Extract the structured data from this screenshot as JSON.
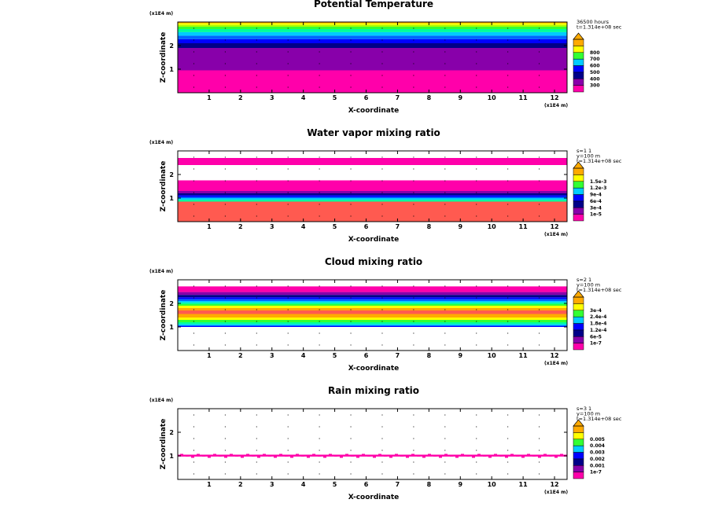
{
  "colors": {
    "magenta": "#ff00aa",
    "purple": "#8800aa",
    "navy": "#000088",
    "blue": "#0000ff",
    "royal": "#0066ff",
    "cyan": "#00ccff",
    "teal": "#00ff99",
    "green": "#33ff33",
    "yellowgreen": "#aaff00",
    "yellow": "#ffff00",
    "orange": "#ffaa00",
    "salmon": "#ff5a50"
  },
  "chart_data": [
    {
      "type": "heatmap",
      "title": "Potential Temperature",
      "xlabel": "X-coordinate",
      "ylabel": "Z-coordinate",
      "x_scale_label": "(x1E4 m)",
      "y_scale_label": "(x1E4 m)",
      "xticks": [
        1,
        2,
        3,
        4,
        5,
        6,
        7,
        8,
        9,
        10,
        11,
        12
      ],
      "yticks": [
        1,
        2
      ],
      "xlim": [
        0,
        12.4
      ],
      "ylim": [
        0,
        3
      ],
      "info": [
        "36500 hours",
        "t=1.314e+08 sec"
      ],
      "legend_levels": [
        "300",
        "400",
        "500",
        "600",
        "700",
        "800"
      ],
      "legend_colors": [
        "magenta",
        "purple",
        "navy",
        "blue",
        "cyan",
        "green",
        "yellow",
        "orange"
      ],
      "bands": [
        {
          "z0": 0.0,
          "z1": 0.95,
          "color": "magenta"
        },
        {
          "z0": 0.95,
          "z1": 1.9,
          "color": "purple"
        },
        {
          "z0": 1.9,
          "z1": 2.1,
          "color": "navy"
        },
        {
          "z0": 2.1,
          "z1": 2.27,
          "color": "blue"
        },
        {
          "z0": 2.27,
          "z1": 2.42,
          "color": "royal"
        },
        {
          "z0": 2.42,
          "z1": 2.57,
          "color": "cyan"
        },
        {
          "z0": 2.57,
          "z1": 2.7,
          "color": "teal"
        },
        {
          "z0": 2.7,
          "z1": 2.8,
          "color": "green"
        },
        {
          "z0": 2.8,
          "z1": 2.88,
          "color": "yellowgreen"
        },
        {
          "z0": 2.88,
          "z1": 2.95,
          "color": "yellow"
        },
        {
          "z0": 2.95,
          "z1": 3.0,
          "color": "orange"
        }
      ]
    },
    {
      "type": "heatmap",
      "title": "Water vapor mixing ratio",
      "xlabel": "X-coordinate",
      "ylabel": "Z-coordinate",
      "x_scale_label": "(x1E4 m)",
      "y_scale_label": "(x1E4 m)",
      "xticks": [
        1,
        2,
        3,
        4,
        5,
        6,
        7,
        8,
        9,
        10,
        11,
        12
      ],
      "yticks": [
        1,
        2
      ],
      "xlim": [
        0,
        12.4
      ],
      "ylim": [
        0,
        3
      ],
      "info": [
        "s=1 1",
        "y=100 m",
        "t=1.314e+08 sec"
      ],
      "legend_levels": [
        "1e-5",
        "3e-4",
        "6e-4",
        "9e-4",
        "1.2e-3",
        "1.5e-3"
      ],
      "legend_colors": [
        "magenta",
        "purple",
        "navy",
        "blue",
        "cyan",
        "green",
        "yellow",
        "orange"
      ],
      "bands": [
        {
          "z0": 0.0,
          "z1": 0.85,
          "color": "salmon"
        },
        {
          "z0": 0.85,
          "z1": 0.93,
          "color": "teal"
        },
        {
          "z0": 0.93,
          "z1": 1.0,
          "color": "cyan"
        },
        {
          "z0": 1.0,
          "z1": 1.05,
          "color": "royal"
        },
        {
          "z0": 1.05,
          "z1": 1.12,
          "color": "blue"
        },
        {
          "z0": 1.12,
          "z1": 1.2,
          "color": "navy"
        },
        {
          "z0": 1.2,
          "z1": 1.3,
          "color": "purple"
        },
        {
          "z0": 1.3,
          "z1": 1.75,
          "color": "magenta"
        },
        {
          "z0": 2.4,
          "z1": 2.7,
          "color": "magenta"
        }
      ]
    },
    {
      "type": "heatmap",
      "title": "Cloud mixing ratio",
      "xlabel": "X-coordinate",
      "ylabel": "Z-coordinate",
      "x_scale_label": "(x1E4 m)",
      "y_scale_label": "(x1E4 m)",
      "xticks": [
        1,
        2,
        3,
        4,
        5,
        6,
        7,
        8,
        9,
        10,
        11,
        12
      ],
      "yticks": [
        1,
        2
      ],
      "xlim": [
        0,
        12.4
      ],
      "ylim": [
        0,
        3
      ],
      "info": [
        "s=2 1",
        "y=100 m",
        "t=1.314e+08 sec"
      ],
      "legend_levels": [
        "1e-7",
        "6e-5",
        "1.2e-4",
        "1.8e-4",
        "2.4e-4",
        "3e-4"
      ],
      "legend_colors": [
        "magenta",
        "purple",
        "navy",
        "blue",
        "cyan",
        "green",
        "yellow",
        "orange"
      ],
      "bands": [
        {
          "z0": 1.0,
          "z1": 1.05,
          "color": "blue"
        },
        {
          "z0": 1.05,
          "z1": 1.12,
          "color": "cyan"
        },
        {
          "z0": 1.12,
          "z1": 1.2,
          "color": "teal"
        },
        {
          "z0": 1.2,
          "z1": 1.3,
          "color": "green"
        },
        {
          "z0": 1.3,
          "z1": 1.4,
          "color": "yellow"
        },
        {
          "z0": 1.4,
          "z1": 1.55,
          "color": "orange"
        },
        {
          "z0": 1.55,
          "z1": 1.7,
          "color": "salmon"
        },
        {
          "z0": 1.7,
          "z1": 1.8,
          "color": "orange"
        },
        {
          "z0": 1.8,
          "z1": 1.9,
          "color": "yellow"
        },
        {
          "z0": 1.9,
          "z1": 1.97,
          "color": "green"
        },
        {
          "z0": 1.97,
          "z1": 2.04,
          "color": "teal"
        },
        {
          "z0": 2.04,
          "z1": 2.1,
          "color": "cyan"
        },
        {
          "z0": 2.1,
          "z1": 2.18,
          "color": "royal"
        },
        {
          "z0": 2.18,
          "z1": 2.26,
          "color": "blue"
        },
        {
          "z0": 2.26,
          "z1": 2.36,
          "color": "navy"
        },
        {
          "z0": 2.36,
          "z1": 2.48,
          "color": "purple"
        },
        {
          "z0": 2.48,
          "z1": 2.72,
          "color": "magenta"
        }
      ]
    },
    {
      "type": "heatmap",
      "title": "Rain mixing ratio",
      "xlabel": "X-coordinate",
      "ylabel": "Z-coordinate",
      "x_scale_label": "(x1E4 m)",
      "y_scale_label": "(x1E4 m)",
      "xticks": [
        1,
        2,
        3,
        4,
        5,
        6,
        7,
        8,
        9,
        10,
        11,
        12
      ],
      "yticks": [
        1,
        2
      ],
      "xlim": [
        0,
        12.4
      ],
      "ylim": [
        0,
        3
      ],
      "info": [
        "s=3 1",
        "y=100 m",
        "t=1.314e+08 sec"
      ],
      "legend_levels": [
        "1e-7",
        "0.001",
        "0.002",
        "0.003",
        "0.004",
        "0.005"
      ],
      "legend_colors": [
        "magenta",
        "purple",
        "navy",
        "blue",
        "cyan",
        "green",
        "yellow",
        "orange"
      ],
      "bands": [
        {
          "z0": 0.97,
          "z1": 1.05,
          "color": "magenta"
        }
      ]
    }
  ]
}
